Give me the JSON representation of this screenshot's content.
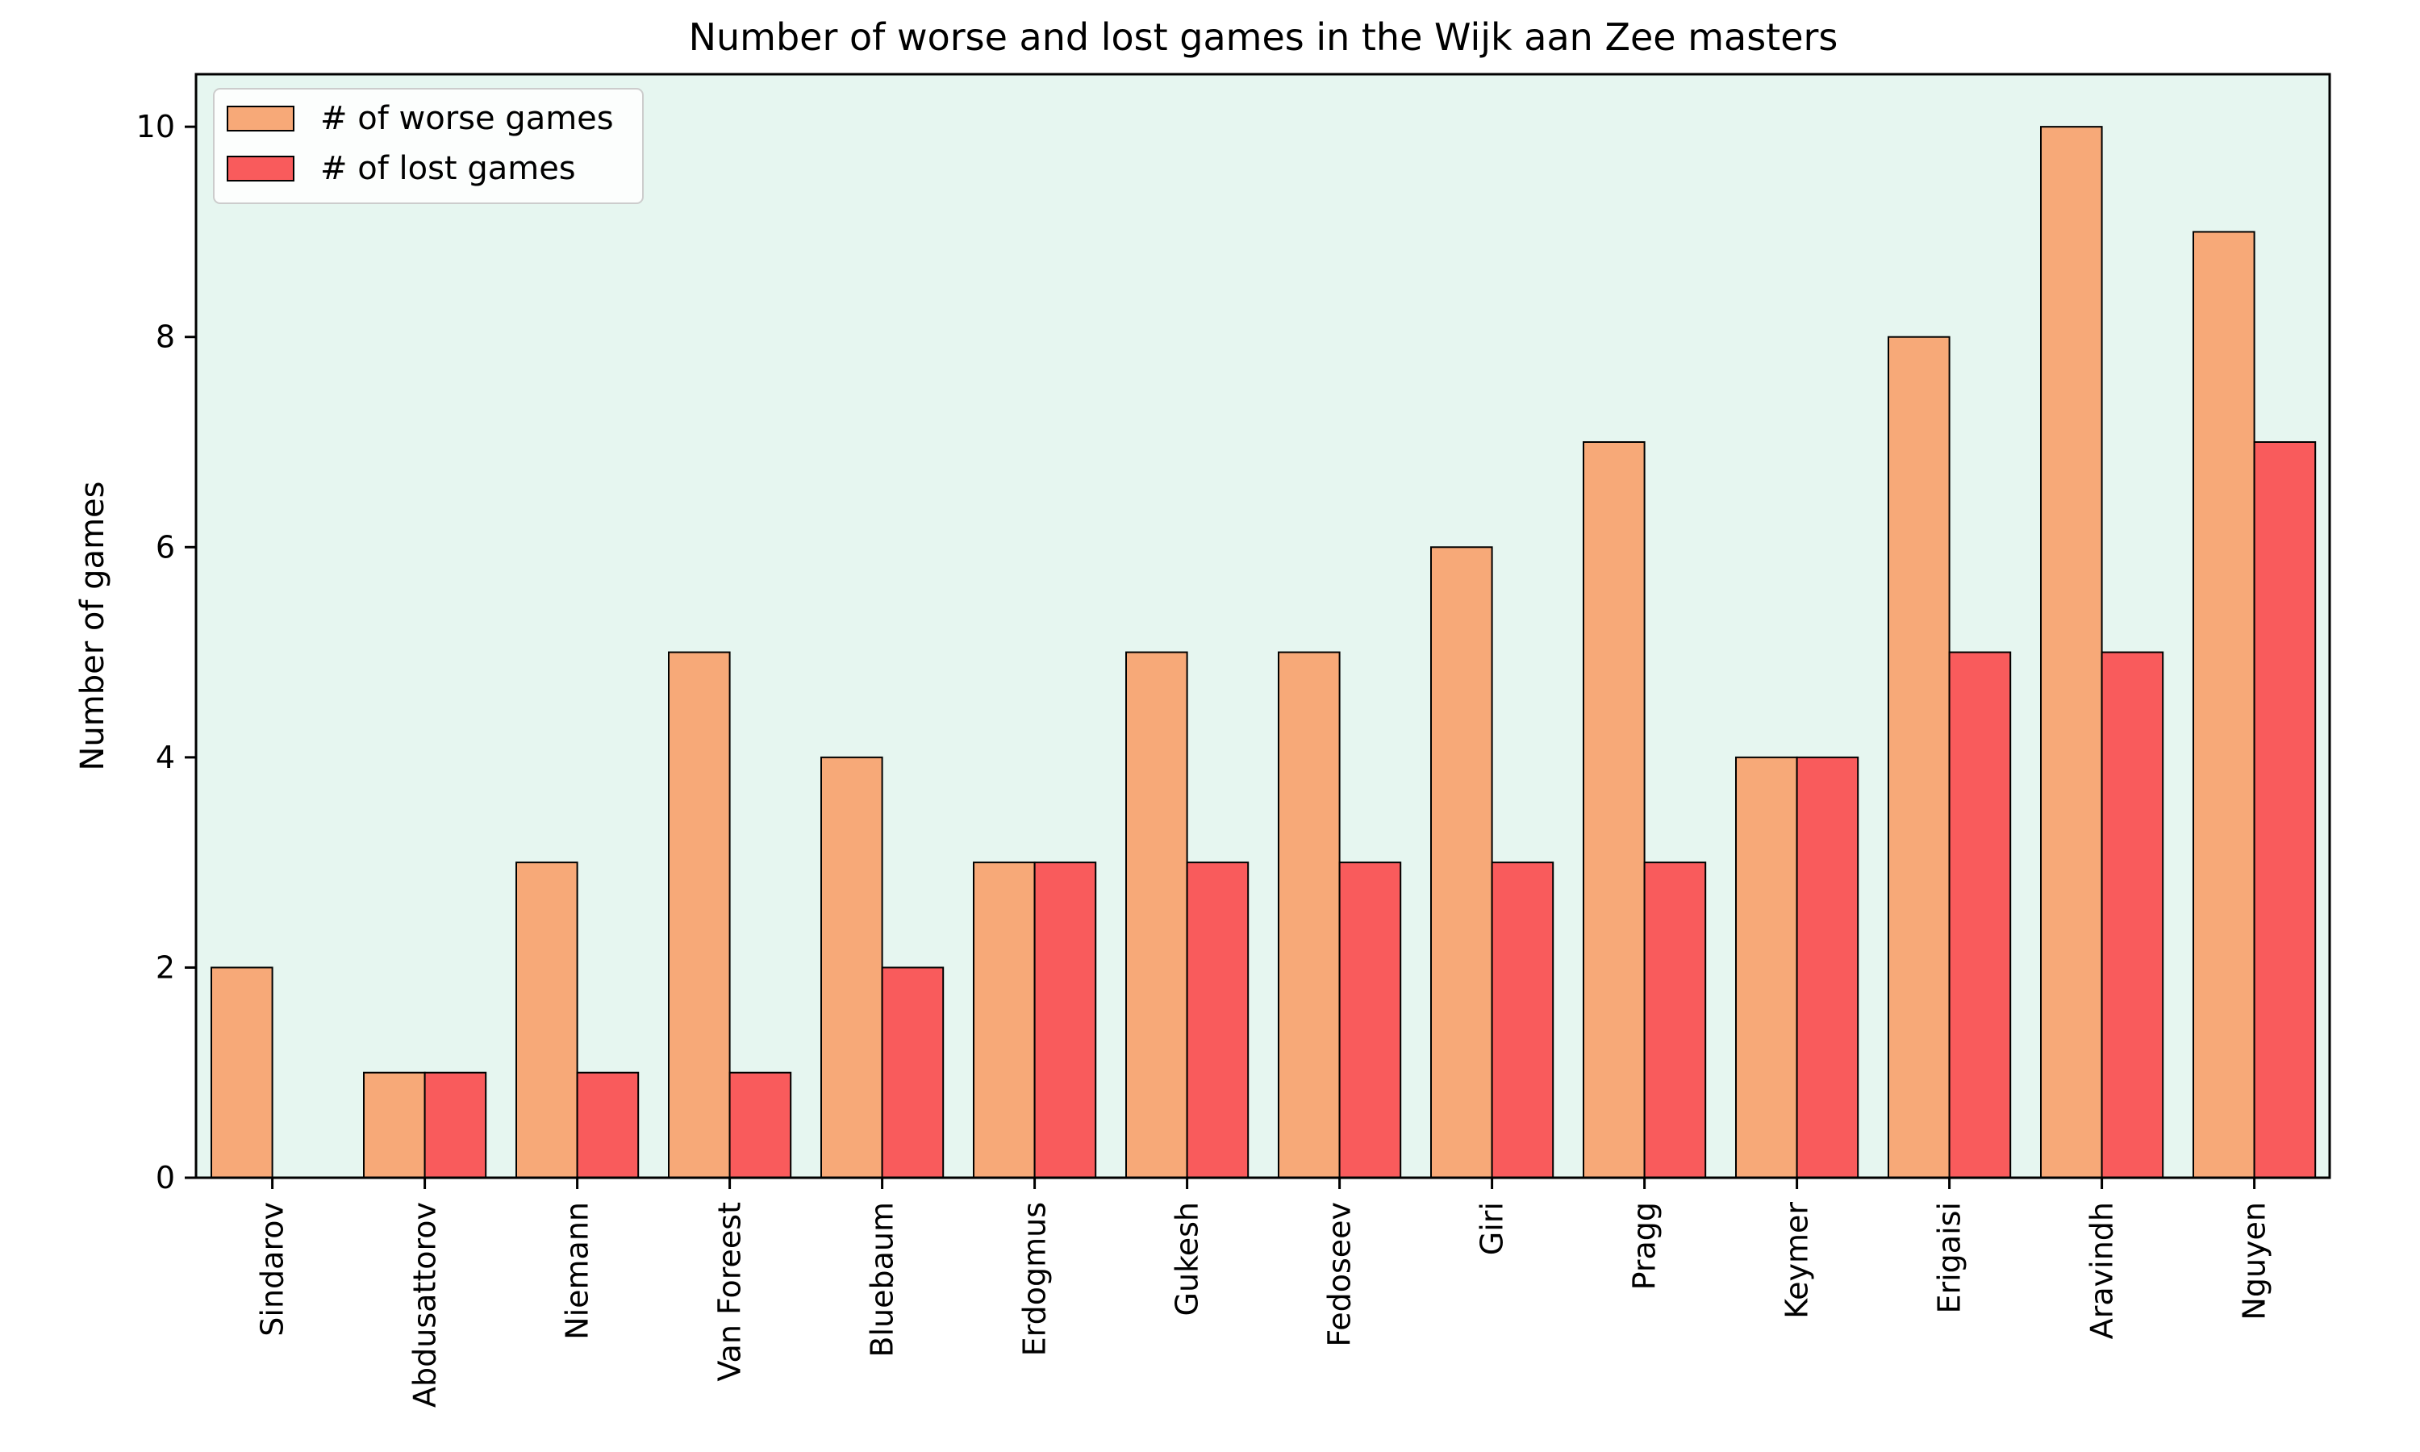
{
  "chart_data": {
    "type": "bar",
    "title": "Number of worse and lost games in the Wijk aan Zee masters",
    "xlabel": "",
    "ylabel": "Number of games",
    "ylim": [
      0,
      10.5
    ],
    "yticks": [
      0,
      2,
      4,
      6,
      8,
      10
    ],
    "grid": false,
    "legend_position": "top-left",
    "background_color": "#e6f6f0",
    "categories": [
      "Sindarov",
      "Abdusattorov",
      "Niemann",
      "Van Foreest",
      "Bluebaum",
      "Erdogmus",
      "Gukesh",
      "Fedoseev",
      "Giri",
      "Pragg",
      "Keymer",
      "Erigaisi",
      "Aravindh",
      "Nguyen"
    ],
    "series": [
      {
        "name": "# of worse games",
        "color": "#f7a978",
        "values": [
          2,
          1,
          3,
          5,
          4,
          3,
          5,
          5,
          6,
          7,
          4,
          8,
          10,
          9
        ]
      },
      {
        "name": "# of lost games",
        "color": "#f95b5c",
        "values": [
          0,
          1,
          1,
          1,
          2,
          3,
          3,
          3,
          3,
          3,
          4,
          5,
          5,
          7
        ]
      }
    ]
  }
}
